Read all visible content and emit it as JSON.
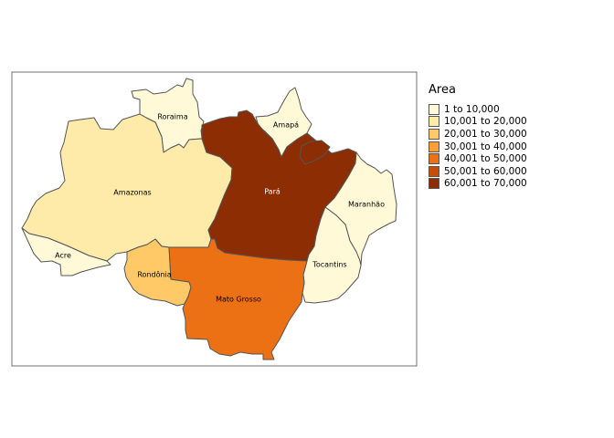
{
  "legend": {
    "title": "Area",
    "classes": [
      {
        "label": "1 to 10,000",
        "color": "#fff9d8"
      },
      {
        "label": "10,001 to 20,000",
        "color": "#feeaa9"
      },
      {
        "label": "20,001 to 30,000",
        "color": "#fec966"
      },
      {
        "label": "30,001 to 40,000",
        "color": "#f99f33"
      },
      {
        "label": "40,001 to 50,000",
        "color": "#ec7014"
      },
      {
        "label": "50,001 to 60,000",
        "color": "#c94c04"
      },
      {
        "label": "60,001 to 70,000",
        "color": "#8c2d04"
      }
    ]
  },
  "states": [
    {
      "id": "roraima",
      "name": "Roraima",
      "class": 0
    },
    {
      "id": "amapa",
      "name": "Amapá",
      "class": 0
    },
    {
      "id": "amazonas",
      "name": "Amazonas",
      "class": 1
    },
    {
      "id": "para",
      "name": "Pará",
      "class": 6
    },
    {
      "id": "maranhao",
      "name": "Maranhão",
      "class": 0
    },
    {
      "id": "acre",
      "name": "Acre",
      "class": 0
    },
    {
      "id": "rondonia",
      "name": "Rondônia",
      "class": 2
    },
    {
      "id": "tocantins",
      "name": "Tocantins",
      "class": 0
    },
    {
      "id": "mato-grosso",
      "name": "Mato Grosso",
      "class": 4
    }
  ]
}
